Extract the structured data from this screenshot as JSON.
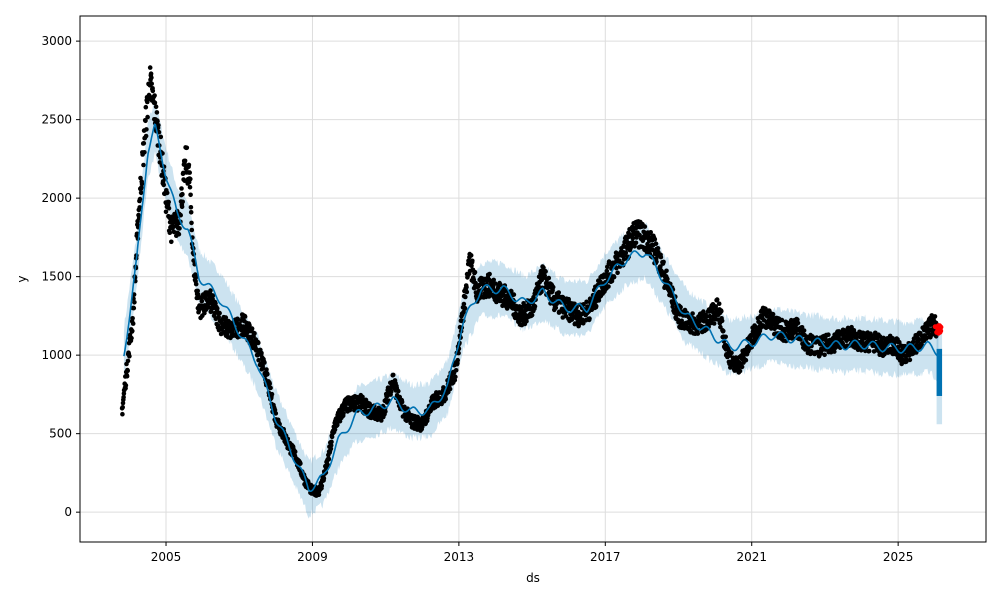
{
  "chart_data": {
    "type": "line",
    "title": "",
    "xlabel": "ds",
    "ylabel": "y",
    "xlim": [
      2002.65,
      2027.4
    ],
    "ylim": [
      -190,
      3160
    ],
    "x_ticks": [
      2005,
      2009,
      2013,
      2017,
      2021,
      2025
    ],
    "x_tick_labels": [
      "2005",
      "2009",
      "2013",
      "2017",
      "2021",
      "2025"
    ],
    "y_ticks": [
      0,
      500,
      1000,
      1500,
      2000,
      2500,
      3000
    ],
    "y_tick_labels": [
      "0",
      "500",
      "1000",
      "1500",
      "2000",
      "2500",
      "3000"
    ],
    "grid": true,
    "colors": {
      "observed": "#000000",
      "forecast": "#0072B2",
      "uncertainty": "#0072B2",
      "test_points": "#FF0000",
      "grid": "#dddddd"
    },
    "observed_anchors": [
      [
        2003.8,
        650
      ],
      [
        2003.95,
        950
      ],
      [
        2004.1,
        1250
      ],
      [
        2004.25,
        1900
      ],
      [
        2004.4,
        2350
      ],
      [
        2004.55,
        2750
      ],
      [
        2004.7,
        2550
      ],
      [
        2004.85,
        2300
      ],
      [
        2005.0,
        2000
      ],
      [
        2005.15,
        1800
      ],
      [
        2005.35,
        1850
      ],
      [
        2005.55,
        2250
      ],
      [
        2005.65,
        2100
      ],
      [
        2005.75,
        1600
      ],
      [
        2005.9,
        1300
      ],
      [
        2006.2,
        1350
      ],
      [
        2006.5,
        1200
      ],
      [
        2006.8,
        1150
      ],
      [
        2007.1,
        1200
      ],
      [
        2007.4,
        1100
      ],
      [
        2007.7,
        900
      ],
      [
        2008.0,
        600
      ],
      [
        2008.3,
        450
      ],
      [
        2008.55,
        350
      ],
      [
        2008.8,
        200
      ],
      [
        2009.0,
        130
      ],
      [
        2009.2,
        140
      ],
      [
        2009.4,
        300
      ],
      [
        2009.6,
        550
      ],
      [
        2009.9,
        680
      ],
      [
        2010.3,
        700
      ],
      [
        2010.6,
        640
      ],
      [
        2010.9,
        620
      ],
      [
        2011.2,
        850
      ],
      [
        2011.4,
        680
      ],
      [
        2011.7,
        580
      ],
      [
        2012.0,
        560
      ],
      [
        2012.3,
        700
      ],
      [
        2012.6,
        750
      ],
      [
        2012.9,
        900
      ],
      [
        2013.1,
        1250
      ],
      [
        2013.3,
        1600
      ],
      [
        2013.5,
        1400
      ],
      [
        2013.8,
        1450
      ],
      [
        2014.1,
        1400
      ],
      [
        2014.4,
        1350
      ],
      [
        2014.7,
        1250
      ],
      [
        2015.0,
        1300
      ],
      [
        2015.3,
        1500
      ],
      [
        2015.6,
        1350
      ],
      [
        2015.9,
        1300
      ],
      [
        2016.3,
        1250
      ],
      [
        2016.6,
        1300
      ],
      [
        2016.9,
        1450
      ],
      [
        2017.2,
        1550
      ],
      [
        2017.5,
        1650
      ],
      [
        2017.8,
        1780
      ],
      [
        2018.1,
        1750
      ],
      [
        2018.4,
        1650
      ],
      [
        2018.7,
        1450
      ],
      [
        2019.0,
        1250
      ],
      [
        2019.3,
        1200
      ],
      [
        2019.6,
        1200
      ],
      [
        2019.9,
        1250
      ],
      [
        2020.1,
        1300
      ],
      [
        2020.3,
        1050
      ],
      [
        2020.5,
        930
      ],
      [
        2020.7,
        950
      ],
      [
        2021.0,
        1100
      ],
      [
        2021.3,
        1250
      ],
      [
        2021.6,
        1200
      ],
      [
        2021.9,
        1150
      ],
      [
        2022.2,
        1180
      ],
      [
        2022.5,
        1080
      ],
      [
        2022.8,
        1050
      ],
      [
        2023.1,
        1070
      ],
      [
        2023.4,
        1100
      ],
      [
        2023.7,
        1120
      ],
      [
        2024.0,
        1080
      ],
      [
        2024.3,
        1090
      ],
      [
        2024.6,
        1050
      ],
      [
        2024.9,
        1070
      ],
      [
        2025.1,
        1000
      ],
      [
        2025.3,
        1020
      ],
      [
        2025.6,
        1100
      ],
      [
        2025.8,
        1150
      ],
      [
        2025.95,
        1200
      ],
      [
        2026.05,
        1180
      ]
    ],
    "trend_anchors": [
      [
        2003.85,
        1000
      ],
      [
        2004.2,
        1600
      ],
      [
        2004.5,
        2300
      ],
      [
        2004.7,
        2450
      ],
      [
        2005.0,
        2150
      ],
      [
        2005.3,
        1900
      ],
      [
        2005.6,
        1800
      ],
      [
        2005.9,
        1500
      ],
      [
        2006.5,
        1350
      ],
      [
        2007.0,
        1150
      ],
      [
        2007.5,
        950
      ],
      [
        2008.0,
        600
      ],
      [
        2008.5,
        350
      ],
      [
        2008.9,
        150
      ],
      [
        2009.3,
        220
      ],
      [
        2009.7,
        450
      ],
      [
        2010.2,
        620
      ],
      [
        2010.7,
        660
      ],
      [
        2011.2,
        710
      ],
      [
        2011.7,
        640
      ],
      [
        2012.2,
        650
      ],
      [
        2012.7,
        800
      ],
      [
        2013.1,
        1200
      ],
      [
        2013.6,
        1420
      ],
      [
        2014.2,
        1420
      ],
      [
        2014.8,
        1330
      ],
      [
        2015.3,
        1400
      ],
      [
        2015.9,
        1300
      ],
      [
        2016.5,
        1300
      ],
      [
        2017.0,
        1480
      ],
      [
        2017.6,
        1620
      ],
      [
        2018.1,
        1660
      ],
      [
        2018.6,
        1480
      ],
      [
        2019.2,
        1250
      ],
      [
        2019.8,
        1150
      ],
      [
        2020.4,
        1050
      ],
      [
        2021.0,
        1080
      ],
      [
        2021.6,
        1130
      ],
      [
        2022.2,
        1100
      ],
      [
        2022.8,
        1080
      ],
      [
        2023.4,
        1060
      ],
      [
        2024.0,
        1070
      ],
      [
        2024.6,
        1050
      ],
      [
        2025.2,
        1040
      ],
      [
        2025.8,
        1060
      ],
      [
        2026.1,
        1020
      ]
    ],
    "band_halfwidth": 170,
    "forecast_segment": {
      "x": [
        2026.05,
        2026.2
      ],
      "y_low": 740,
      "y_high": 1040,
      "band_low": 560,
      "band_high": 1180
    },
    "test_points": {
      "x": [
        2026.0,
        2026.2
      ],
      "y_low": 1140,
      "y_high": 1200
    }
  }
}
